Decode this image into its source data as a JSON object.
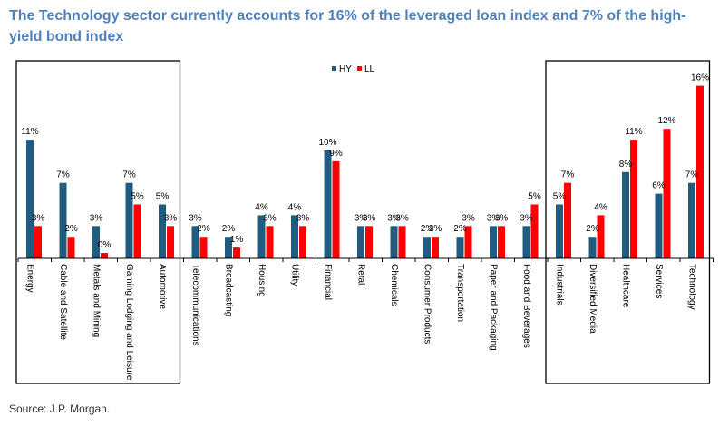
{
  "title": "The Technology sector currently accounts for 16% of the leveraged loan index and 7% of the high-yield bond index",
  "source": "Source: J.P. Morgan.",
  "chart_data": {
    "type": "bar",
    "title": "",
    "xlabel": "",
    "ylabel": "",
    "ylim": [
      0,
      18
    ],
    "grid": false,
    "legend_placement": "top-center",
    "categories": [
      "Energy",
      "Cable and Satellite",
      "Metals and Mining",
      "Gaming Lodging and Leisure",
      "Automotive",
      "Telecommunications",
      "Broadcasting",
      "Housing",
      "Utility",
      "Financial",
      "Retail",
      "Chemicals",
      "Consumer Products",
      "Transportation",
      "Paper and Packaging",
      "Food and Beverages",
      "Industrials",
      "Diversified Media",
      "Healthcare",
      "Services",
      "Technology"
    ],
    "series": [
      {
        "name": "HY",
        "color": "#1f5c80",
        "values": [
          11,
          7,
          3,
          7,
          5,
          3,
          2,
          4,
          4,
          10,
          3,
          3,
          2,
          2,
          3,
          3,
          5,
          2,
          8,
          6,
          7
        ],
        "labels": [
          "11%",
          "7%",
          "3%",
          "7%",
          "5%",
          "3%",
          "2%",
          "4%",
          "4%",
          "10%",
          "3%",
          "3%",
          "2%",
          "2%",
          "3%",
          "3%",
          "5%",
          "2%",
          "8%",
          "6%",
          "7%"
        ]
      },
      {
        "name": "LL",
        "color": "#ff0000",
        "values": [
          3,
          2,
          0.5,
          5,
          3,
          2,
          1,
          3,
          3,
          9,
          3,
          3,
          2,
          3,
          3,
          5,
          7,
          4,
          11,
          12,
          16
        ],
        "labels": [
          "3%",
          "2%",
          "0%",
          "5%",
          "3%",
          "2%",
          "1%",
          "3%",
          "3%",
          "9%",
          "3%",
          "3%",
          "2%",
          "3%",
          "3%",
          "5%",
          "7%",
          "4%",
          "11%",
          "12%",
          "16%"
        ]
      }
    ],
    "highlight_groups": [
      [
        0,
        4
      ],
      [
        16,
        20
      ]
    ]
  }
}
